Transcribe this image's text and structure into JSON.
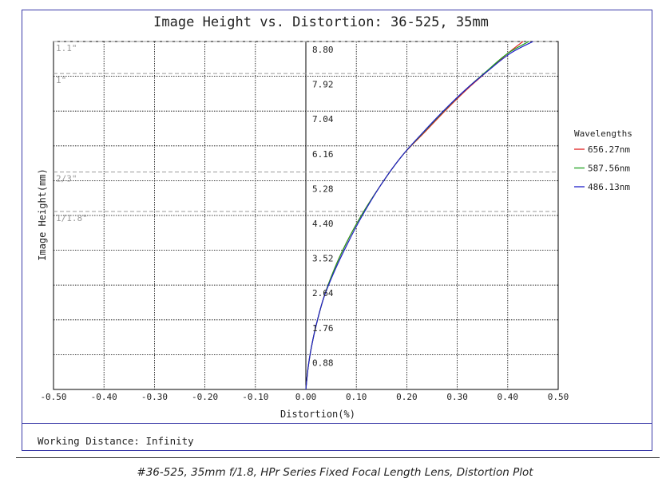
{
  "chart_data": {
    "type": "line",
    "title": "Image Height vs. Distortion: 36-525, 35mm",
    "xlabel": "Distortion(%)",
    "ylabel": "Image Height(mm)",
    "xlim": [
      -0.5,
      0.5
    ],
    "ylim": [
      0,
      8.8
    ],
    "x_ticks": [
      "-0.50",
      "-0.40",
      "-0.30",
      "-0.20",
      "-0.10",
      "0.00",
      "0.10",
      "0.20",
      "0.30",
      "0.40",
      "0.50"
    ],
    "y_ticks": [
      "0.88",
      "1.76",
      "2.64",
      "3.52",
      "4.40",
      "5.28",
      "6.16",
      "7.04",
      "7.92",
      "8.80"
    ],
    "grid": true,
    "sensor_formats": [
      {
        "label": "1.1\"",
        "y": 8.8
      },
      {
        "label": "1\"",
        "y": 7.99
      },
      {
        "label": "2/3\"",
        "y": 5.5
      },
      {
        "label": "1/1.8\"",
        "y": 4.5
      }
    ],
    "legend": {
      "title": "Wavelengths",
      "placement": "right"
    },
    "series": [
      {
        "name": "656.27nm",
        "color": "#e02020",
        "x": [
          0,
          0.004,
          0.01,
          0.02,
          0.035,
          0.055,
          0.08,
          0.11,
          0.15,
          0.19,
          0.235,
          0.28,
          0.32,
          0.36,
          0.4,
          0.43
        ],
        "y": [
          0,
          0.5,
          1.0,
          1.6,
          2.3,
          3.0,
          3.7,
          4.4,
          5.2,
          5.9,
          6.5,
          7.1,
          7.6,
          8.05,
          8.5,
          8.8
        ]
      },
      {
        "name": "587.56nm",
        "color": "#20a020",
        "x": [
          0,
          0.004,
          0.01,
          0.02,
          0.035,
          0.055,
          0.08,
          0.11,
          0.15,
          0.19,
          0.233,
          0.278,
          0.318,
          0.358,
          0.4,
          0.442
        ],
        "y": [
          0,
          0.5,
          1.0,
          1.6,
          2.3,
          3.0,
          3.7,
          4.4,
          5.2,
          5.9,
          6.5,
          7.1,
          7.6,
          8.05,
          8.5,
          8.8
        ]
      },
      {
        "name": "486.13nm",
        "color": "#2020c8",
        "x": [
          0,
          0.004,
          0.01,
          0.02,
          0.035,
          0.057,
          0.083,
          0.112,
          0.15,
          0.19,
          0.232,
          0.277,
          0.318,
          0.36,
          0.405,
          0.45
        ],
        "y": [
          0,
          0.5,
          1.0,
          1.6,
          2.3,
          3.0,
          3.7,
          4.4,
          5.2,
          5.9,
          6.5,
          7.1,
          7.6,
          8.05,
          8.5,
          8.8
        ]
      }
    ]
  },
  "working_distance": "Working Distance: Infinity",
  "caption": "#36-525, 35mm f/1.8, HPr Series Fixed Focal Length Lens, Distortion Plot"
}
